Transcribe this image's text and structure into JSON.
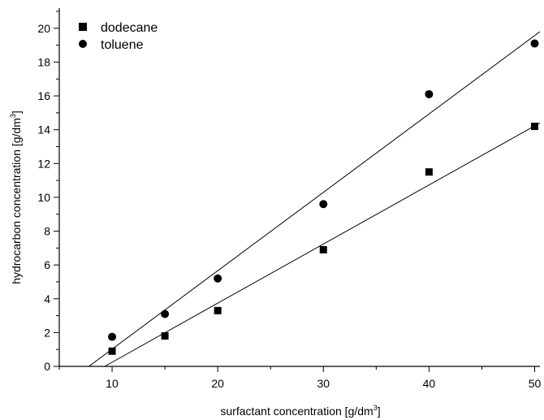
{
  "chart_data": {
    "type": "scatter",
    "title": "",
    "xlabel": "surfactant concentration [g/dm",
    "xlabel_sup": "3",
    "xlabel_tail": "]",
    "ylabel": "hydrocarbon concentration [g/dm",
    "ylabel_sup": "3",
    "ylabel_tail": "]",
    "xlim": [
      5,
      50.5
    ],
    "ylim": [
      0,
      21
    ],
    "x_ticks": [
      10,
      20,
      30,
      40,
      50
    ],
    "y_ticks": [
      0,
      2,
      4,
      6,
      8,
      10,
      12,
      14,
      16,
      18,
      20
    ],
    "legend": "top-left",
    "grid": false,
    "series": [
      {
        "name": "dodecane",
        "marker": "square",
        "color": "#000000",
        "x": [
          10,
          15,
          20,
          30,
          40,
          50
        ],
        "y": [
          0.9,
          1.8,
          3.3,
          6.9,
          11.5,
          14.2
        ],
        "fit_line": [
          [
            9.3,
            0
          ],
          [
            50.5,
            14.4
          ]
        ]
      },
      {
        "name": "toluene",
        "marker": "circle",
        "color": "#000000",
        "x": [
          10,
          15,
          20,
          30,
          40,
          50
        ],
        "y": [
          1.75,
          3.1,
          5.2,
          9.6,
          16.1,
          19.1
        ],
        "fit_line": [
          [
            7.8,
            0
          ],
          [
            50.5,
            19.8
          ]
        ]
      }
    ]
  }
}
